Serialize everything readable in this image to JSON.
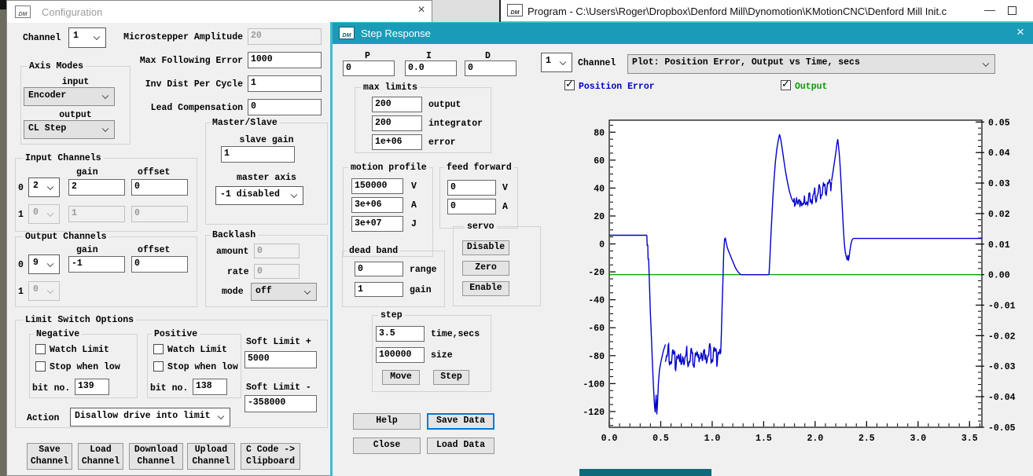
{
  "config_window": {
    "title": "Configuration",
    "close_icon": "×",
    "channel_label": "Channel",
    "channel_value": "1",
    "microstepper_label": "Microstepper Amplitude",
    "microstepper_value": "20",
    "max_following_error_label": "Max Following Error",
    "max_following_error_value": "1000",
    "inv_dist_label": "Inv Dist Per Cycle",
    "inv_dist_value": "1",
    "lead_comp_label": "Lead Compensation",
    "lead_comp_value": "0",
    "axis_modes": {
      "title": "Axis Modes",
      "input_label": "input",
      "input_value": "Encoder",
      "output_label": "output",
      "output_value": "CL Step"
    },
    "input_channels": {
      "title": "Input Channels",
      "gain_header": "gain",
      "offset_header": "offset",
      "rows": [
        {
          "index": "0",
          "channel": "2",
          "gain": "2",
          "offset": "0"
        },
        {
          "index": "1",
          "channel": "0",
          "gain": "1",
          "offset": "0"
        }
      ]
    },
    "output_channels": {
      "title": "Output Channels",
      "gain_header": "gain",
      "offset_header": "offset",
      "rows": [
        {
          "index": "0",
          "channel": "9",
          "gain": "-1",
          "offset": "0"
        },
        {
          "index": "1",
          "channel": "0"
        }
      ]
    },
    "master_slave": {
      "title": "Master/Slave",
      "slave_gain_label": "slave gain",
      "slave_gain_value": "1",
      "master_axis_label": "master axis",
      "master_axis_value": "-1 disabled"
    },
    "backlash": {
      "title": "Backlash",
      "amount_label": "amount",
      "amount_value": "0",
      "rate_label": "rate",
      "rate_value": "0",
      "mode_label": "mode",
      "mode_value": "off"
    },
    "limit_switch": {
      "title": "Limit Switch Options",
      "negative": {
        "title": "Negative",
        "watch_label": "Watch Limit",
        "stop_label": "Stop when low",
        "bit_label": "bit no.",
        "bit_value": "139"
      },
      "positive": {
        "title": "Positive",
        "watch_label": "Watch Limit",
        "stop_label": "Stop when low",
        "bit_label": "bit no.",
        "bit_value": "138"
      },
      "soft_limit_plus_label": "Soft Limit +",
      "soft_limit_plus_value": "5000",
      "soft_limit_minus_label": "Soft Limit -",
      "soft_limit_minus_value": "-358000",
      "action_label": "Action",
      "action_value": "Disallow drive into limit"
    },
    "buttons": [
      "Save Channel",
      "Load Channel",
      "Download Channel",
      "Upload Channel",
      "C Code -> Clipboard"
    ]
  },
  "program_window": {
    "title": "Program - C:\\Users\\Roger\\Dropbox\\Denford Mill\\Dynomotion\\KMotionCNC\\Denford Mill Init.c",
    "minimize_icon": "—"
  },
  "step_response_window": {
    "title": "Step Response",
    "close_icon": "×",
    "p_label": "P",
    "p_value": "0",
    "i_label": "I",
    "i_value": "0.0",
    "d_label": "D",
    "d_value": "0",
    "channel_value": "1",
    "channel_label": "Channel",
    "plot_selector_value": "Plot: Position Error, Output vs Time, secs",
    "legend": {
      "position_error_label": "Position Error",
      "position_error_checked": true,
      "position_error_color": "#0000cc",
      "output_label": "Output",
      "output_checked": true,
      "output_color": "#00a000"
    },
    "max_limits": {
      "title": "max limits",
      "rows": [
        {
          "value": "200",
          "label": "output"
        },
        {
          "value": "200",
          "label": "integrator"
        },
        {
          "value": "1e+06",
          "label": "error"
        }
      ]
    },
    "motion_profile": {
      "title": "motion profile",
      "rows": [
        {
          "value": "150000",
          "label": "V"
        },
        {
          "value": "3e+06",
          "label": "A"
        },
        {
          "value": "3e+07",
          "label": "J"
        }
      ]
    },
    "feed_forward": {
      "title": "feed forward",
      "rows": [
        {
          "value": "0",
          "label": "V"
        },
        {
          "value": "0",
          "label": "A"
        }
      ]
    },
    "servo": {
      "title": "servo",
      "disable_label": "Disable",
      "zero_label": "Zero",
      "enable_label": "Enable"
    },
    "dead_band": {
      "title": "dead band",
      "rows": [
        {
          "value": "0",
          "label": "range"
        },
        {
          "value": "1",
          "label": "gain"
        }
      ]
    },
    "step": {
      "title": "step",
      "time_value": "3.5",
      "time_label": "time,secs",
      "size_value": "100000",
      "size_label": "size",
      "move_label": "Move",
      "step_label": "Step"
    },
    "help_label": "Help",
    "save_data_label": "Save Data",
    "close_label": "Close",
    "load_data_label": "Load Data"
  },
  "chart_data": {
    "type": "line",
    "title": "Plot: Position Error, Output vs Time, secs",
    "x_axis": {
      "min": 0,
      "max": 3.62,
      "major_ticks": [
        0.0,
        0.5,
        1.0,
        1.5,
        2.0,
        2.5,
        3.0,
        3.5
      ],
      "tick_labels": [
        "0.0",
        "0.5",
        "1.0",
        "1.5",
        "2.0",
        "2.5",
        "3.0",
        "3.5"
      ],
      "minor_step": 0.1
    },
    "y_left": {
      "min": -131.3,
      "max": 88.6,
      "major_ticks": [
        80,
        60,
        40,
        20,
        0,
        -20,
        -40,
        -60,
        -80,
        -100,
        -120
      ],
      "minor_step": 5,
      "series": "Position Error"
    },
    "y_right": {
      "major_tick_labels": [
        "0.05",
        "0.04",
        "0.03",
        "0.02",
        "0.01",
        "0.00",
        "-0.01",
        "-0.02",
        "-0.03",
        "-0.04",
        "-0.05"
      ],
      "major_ticks": [
        0.05,
        0.04,
        0.03,
        0.02,
        0.01,
        0.0,
        -0.01,
        -0.02,
        -0.03,
        -0.04,
        -0.05
      ],
      "minor_step": 0.002,
      "zero_at_left": -21.97,
      "left_units_per_right_unit": 2185,
      "series": "Output"
    },
    "grid": false,
    "series": [
      {
        "name": "Position Error",
        "color": "#0000c8",
        "axis": "left",
        "segments": [
          {
            "points": [
              [
                0,
                6.2
              ],
              [
                0.365,
                6.2
              ]
            ]
          },
          {
            "points": [
              [
                0.365,
                6.2
              ],
              [
                0.368,
                -1
              ],
              [
                0.374,
                -1
              ],
              [
                0.377,
                -11
              ],
              [
                0.383,
                -11
              ],
              [
                0.39,
                -28
              ],
              [
                0.399,
                -48
              ],
              [
                0.41,
                -68
              ],
              [
                0.421,
                -88
              ],
              [
                0.431,
                -104
              ],
              [
                0.44,
                -116
              ],
              [
                0.446,
                -120.5
              ],
              [
                0.451,
                -113
              ],
              [
                0.456,
                -108
              ],
              [
                0.462,
                -122
              ],
              [
                0.469,
                -114
              ],
              [
                0.477,
                -100
              ],
              [
                0.488,
                -90
              ],
              [
                0.503,
                -84
              ],
              [
                0.524,
                -77
              ],
              [
                0.545,
                -72
              ]
            ]
          },
          {
            "points": [
              [
                0.545,
                -80
              ],
              [
                0.7,
                -83
              ],
              [
                0.85,
                -81
              ],
              [
                1.0,
                -79
              ],
              [
                1.083,
                -78
              ]
            ],
            "noise": {
              "amp": 10,
              "period": 0.058,
              "seed": 2
            }
          },
          {
            "points": [
              [
                1.083,
                -78
              ],
              [
                1.09,
                -62
              ],
              [
                1.097,
                -44
              ],
              [
                1.105,
                -24
              ],
              [
                1.112,
                -6
              ],
              [
                1.12,
                3.5
              ],
              [
                1.128,
                4
              ],
              [
                1.136,
                1
              ],
              [
                1.146,
                -2.5
              ],
              [
                1.158,
                -5
              ],
              [
                1.172,
                -7.5
              ],
              [
                1.188,
                -10.5
              ],
              [
                1.205,
                -13.5
              ],
              [
                1.225,
                -17
              ],
              [
                1.25,
                -20
              ],
              [
                1.278,
                -22
              ]
            ]
          },
          {
            "points": [
              [
                1.278,
                -22
              ],
              [
                1.552,
                -22
              ]
            ]
          },
          {
            "points": [
              [
                1.552,
                -22
              ],
              [
                1.559,
                -13
              ],
              [
                1.565,
                -3
              ],
              [
                1.572,
                8
              ],
              [
                1.58,
                20
              ],
              [
                1.59,
                34
              ],
              [
                1.601,
                46
              ],
              [
                1.613,
                58
              ],
              [
                1.626,
                67
              ],
              [
                1.641,
                74
              ],
              [
                1.654,
                78.5
              ],
              [
                1.666,
                75
              ],
              [
                1.679,
                69
              ],
              [
                1.694,
                61
              ],
              [
                1.71,
                53
              ],
              [
                1.729,
                45
              ],
              [
                1.749,
                38
              ],
              [
                1.769,
                33
              ],
              [
                1.788,
                30
              ]
            ]
          },
          {
            "points": [
              [
                1.788,
                31
              ],
              [
                1.88,
                29
              ],
              [
                1.97,
                33
              ],
              [
                2.06,
                38
              ],
              [
                2.13,
                42
              ],
              [
                2.16,
                45
              ]
            ],
            "noise": {
              "amp": 7.5,
              "period": 0.05,
              "seed": 9
            }
          },
          {
            "points": [
              [
                2.16,
                45
              ],
              [
                2.174,
                52
              ],
              [
                2.188,
                59
              ],
              [
                2.2,
                65
              ],
              [
                2.21,
                71
              ],
              [
                2.219,
                75
              ],
              [
                2.227,
                70
              ],
              [
                2.236,
                63
              ],
              [
                2.245,
                53
              ],
              [
                2.254,
                41
              ],
              [
                2.263,
                27
              ],
              [
                2.273,
                13
              ],
              [
                2.283,
                1
              ],
              [
                2.293,
                -6
              ],
              [
                2.303,
                -9.5
              ],
              [
                2.312,
                -11.5
              ],
              [
                2.318,
                -8
              ],
              [
                2.323,
                -12
              ],
              [
                2.329,
                -9.5
              ],
              [
                2.338,
                -5
              ],
              [
                2.348,
                0
              ],
              [
                2.358,
                2.8
              ],
              [
                2.368,
                3.9
              ]
            ]
          },
          {
            "points": [
              [
                2.368,
                3.9
              ],
              [
                3.62,
                3.9
              ]
            ]
          }
        ]
      },
      {
        "name": "Output",
        "color": "#00a000",
        "axis": "right",
        "segments": [
          {
            "points": [
              [
                0,
                0.0
              ],
              [
                3.62,
                0.0
              ]
            ]
          }
        ]
      }
    ]
  }
}
